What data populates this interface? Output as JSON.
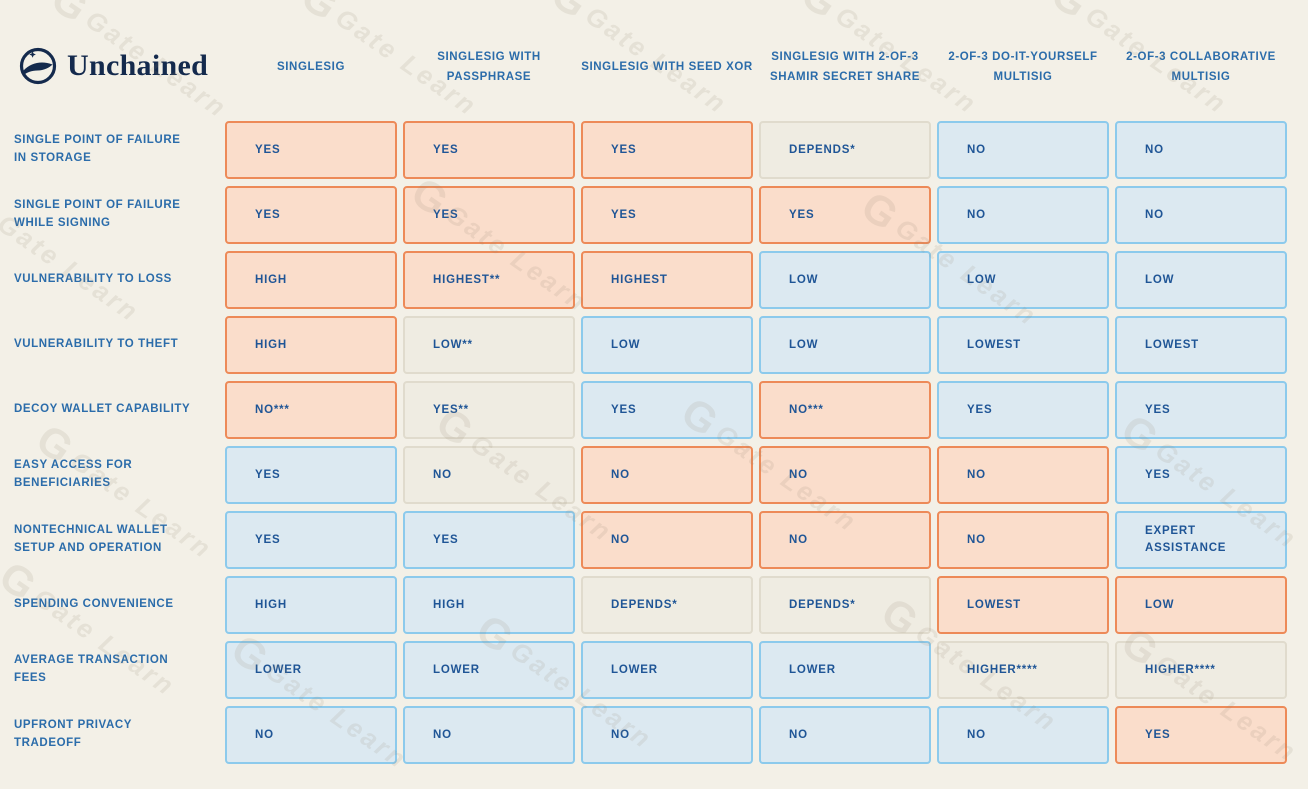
{
  "logo": {
    "brand": "Unchained"
  },
  "watermark": {
    "glyph": "G",
    "text": "Gate Learn"
  },
  "colors": {
    "background": "#F3F0E7",
    "bad_fill": "#FADDCB",
    "bad_border": "#ED8A58",
    "good_fill": "#DCE9F1",
    "good_border": "#8CCAEC",
    "neutral_fill": "#EFECE2",
    "neutral_border": "#E0DBCD",
    "cell_text": "#1F5596",
    "heading_text": "#2B6CAA",
    "logo_navy": "#142A4D"
  },
  "table": {
    "columns": [
      "SINGLESIG",
      "SINGLESIG WITH PASSPHRASE",
      "SINGLESIG WITH SEED XOR",
      "SINGLESIG WITH 2-OF-3 SHAMIR SECRET SHARE",
      "2-OF-3 DO-IT-YOURSELF MULTISIG",
      "2-OF-3 COLLABORATIVE MULTISIG"
    ],
    "rows": [
      {
        "label": "SINGLE POINT OF FAILURE IN STORAGE",
        "cells": [
          {
            "text": "YES",
            "tone": "bad"
          },
          {
            "text": "YES",
            "tone": "bad"
          },
          {
            "text": "YES",
            "tone": "bad"
          },
          {
            "text": "DEPENDS*",
            "tone": "neutral"
          },
          {
            "text": "NO",
            "tone": "good"
          },
          {
            "text": "NO",
            "tone": "good"
          }
        ]
      },
      {
        "label": "SINGLE POINT OF FAILURE WHILE SIGNING",
        "cells": [
          {
            "text": "YES",
            "tone": "bad"
          },
          {
            "text": "YES",
            "tone": "bad"
          },
          {
            "text": "YES",
            "tone": "bad"
          },
          {
            "text": "YES",
            "tone": "bad"
          },
          {
            "text": "NO",
            "tone": "good"
          },
          {
            "text": "NO",
            "tone": "good"
          }
        ]
      },
      {
        "label": "VULNERABILITY TO LOSS",
        "cells": [
          {
            "text": "HIGH",
            "tone": "bad"
          },
          {
            "text": "HIGHEST**",
            "tone": "bad"
          },
          {
            "text": "HIGHEST",
            "tone": "bad"
          },
          {
            "text": "LOW",
            "tone": "good"
          },
          {
            "text": "LOW",
            "tone": "good"
          },
          {
            "text": "LOW",
            "tone": "good"
          }
        ]
      },
      {
        "label": "VULNERABILITY TO THEFT",
        "cells": [
          {
            "text": "HIGH",
            "tone": "bad"
          },
          {
            "text": "LOW**",
            "tone": "neutral"
          },
          {
            "text": "LOW",
            "tone": "good"
          },
          {
            "text": "LOW",
            "tone": "good"
          },
          {
            "text": "LOWEST",
            "tone": "good"
          },
          {
            "text": "LOWEST",
            "tone": "good"
          }
        ]
      },
      {
        "label": "DECOY WALLET CAPABILITY",
        "cells": [
          {
            "text": "NO***",
            "tone": "bad"
          },
          {
            "text": "YES**",
            "tone": "neutral"
          },
          {
            "text": "YES",
            "tone": "good"
          },
          {
            "text": "NO***",
            "tone": "bad"
          },
          {
            "text": "YES",
            "tone": "good"
          },
          {
            "text": "YES",
            "tone": "good"
          }
        ]
      },
      {
        "label": "EASY ACCESS FOR BENEFICIARIES",
        "cells": [
          {
            "text": "YES",
            "tone": "good"
          },
          {
            "text": "NO",
            "tone": "neutral"
          },
          {
            "text": "NO",
            "tone": "bad"
          },
          {
            "text": "NO",
            "tone": "bad"
          },
          {
            "text": "NO",
            "tone": "bad"
          },
          {
            "text": "YES",
            "tone": "good"
          }
        ]
      },
      {
        "label": "NONTECHNICAL WALLET SETUP AND OPERATION",
        "cells": [
          {
            "text": "YES",
            "tone": "good"
          },
          {
            "text": "YES",
            "tone": "good"
          },
          {
            "text": "NO",
            "tone": "bad"
          },
          {
            "text": "NO",
            "tone": "bad"
          },
          {
            "text": "NO",
            "tone": "bad"
          },
          {
            "text": "EXPERT ASSISTANCE",
            "tone": "good"
          }
        ]
      },
      {
        "label": "SPENDING CONVENIENCE",
        "cells": [
          {
            "text": "HIGH",
            "tone": "good"
          },
          {
            "text": "HIGH",
            "tone": "good"
          },
          {
            "text": "DEPENDS*",
            "tone": "neutral"
          },
          {
            "text": "DEPENDS*",
            "tone": "neutral"
          },
          {
            "text": "LOWEST",
            "tone": "bad"
          },
          {
            "text": "LOW",
            "tone": "bad"
          }
        ]
      },
      {
        "label": "AVERAGE TRANSACTION FEES",
        "cells": [
          {
            "text": "LOWER",
            "tone": "good"
          },
          {
            "text": "LOWER",
            "tone": "good"
          },
          {
            "text": "LOWER",
            "tone": "good"
          },
          {
            "text": "LOWER",
            "tone": "good"
          },
          {
            "text": "HIGHER****",
            "tone": "neutral"
          },
          {
            "text": "HIGHER****",
            "tone": "neutral"
          }
        ]
      },
      {
        "label": "UPFRONT PRIVACY TRADEOFF",
        "cells": [
          {
            "text": "NO",
            "tone": "good"
          },
          {
            "text": "NO",
            "tone": "good"
          },
          {
            "text": "NO",
            "tone": "good"
          },
          {
            "text": "NO",
            "tone": "good"
          },
          {
            "text": "NO",
            "tone": "good"
          },
          {
            "text": "YES",
            "tone": "bad"
          }
        ]
      }
    ]
  }
}
